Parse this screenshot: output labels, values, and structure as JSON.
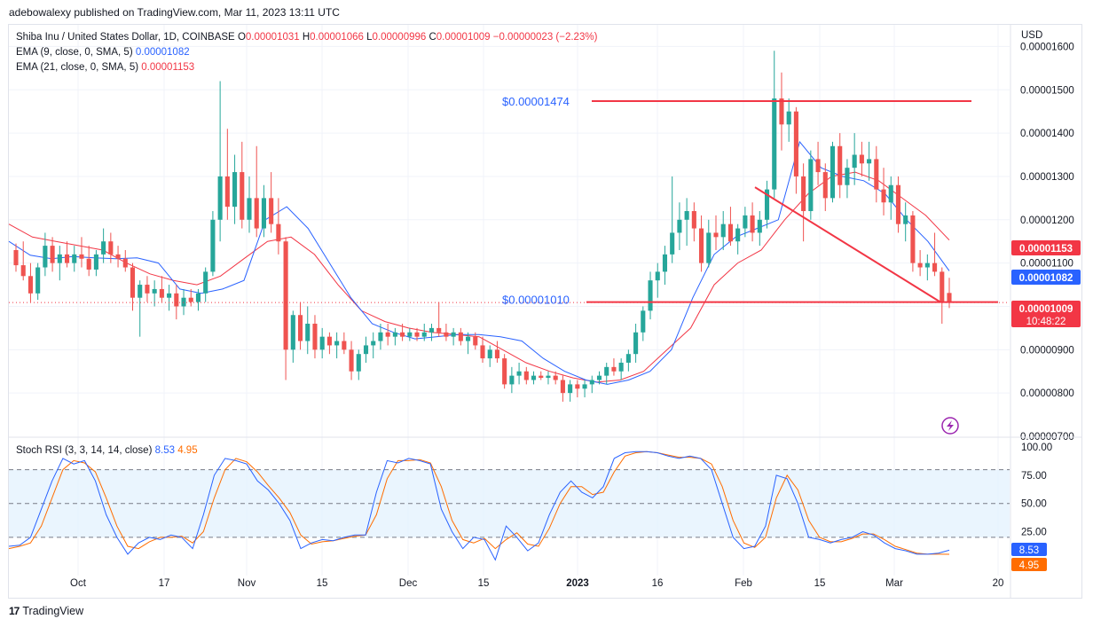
{
  "header": {
    "publisher": "adebowalexy published on TradingView.com, Mar 11, 2023 13:11 UTC"
  },
  "legend": {
    "symbol": "Shiba Inu / United States Dollar, 1D, COINBASE",
    "ohlc": [
      {
        "k": "O",
        "v": "0.00001031"
      },
      {
        "k": "H",
        "v": "0.00001066"
      },
      {
        "k": "L",
        "v": "0.00000996"
      },
      {
        "k": "C",
        "v": "0.00001009"
      }
    ],
    "change": "−0.00000023 (−2.23%)",
    "ema9_label": "EMA (9, close, 0, SMA, 5)",
    "ema9_value": "0.00001082",
    "ema21_label": "EMA (21, close, 0, SMA, 5)",
    "ema21_value": "0.00001153"
  },
  "rsi_legend": {
    "label": "Stoch RSI (3, 3, 14, 14, close)",
    "k": "8.53",
    "d": "4.95"
  },
  "currency": "USD",
  "footer": {
    "brand": "TradingView",
    "logo": "17"
  },
  "colors": {
    "up": "#26a69a",
    "down": "#ef5350",
    "ema9": "#2962ff",
    "ema21": "#f23645",
    "stoch_k": "#2962ff",
    "stoch_d": "#ff6d00",
    "band": "#e3f2fd"
  },
  "chart_data": [
    {
      "type": "candlestick",
      "title": "Shiba Inu / United States Dollar, 1D, COINBASE",
      "price_axis": [
        "0.00001600",
        "0.00001500",
        "0.00001400",
        "0.00001300",
        "0.00001200",
        "0.00001100",
        "0.00001000",
        "0.00000900",
        "0.00000800",
        "0.00000700"
      ],
      "time_axis": [
        "Oct",
        "17",
        "Nov",
        "15",
        "Dec",
        "15",
        "2023",
        "16",
        "Feb",
        "15",
        "Mar",
        "20"
      ],
      "ylim": [
        7e-06,
        1.65e-05
      ],
      "price_labels": [
        {
          "text": "0.00001153",
          "color": "#f23645"
        },
        {
          "text": "0.00001082",
          "color": "#2962ff"
        },
        {
          "text": "0.00001009",
          "sub": "10:48:22",
          "color": "#f23645"
        }
      ],
      "annotations": [
        {
          "text": "$0.00001474",
          "level": 1.474e-05
        },
        {
          "text": "$0.00001010",
          "level": 1.01e-05
        }
      ],
      "trendline": {
        "from": [
          1.275e-05,
          "Feb 5"
        ],
        "to": [
          1.01e-05,
          "Mar 9"
        ]
      },
      "ohlc_path": [
        [
          1.13e-05,
          1.145e-05,
          1.08e-05,
          1.095e-05
        ],
        [
          1.095e-05,
          1.15e-05,
          1.06e-05,
          1.07e-05
        ],
        [
          1.07e-05,
          1.1e-05,
          1.01e-05,
          1.03e-05
        ],
        [
          1.03e-05,
          1.1e-05,
          1.015e-05,
          1.09e-05
        ],
        [
          1.09e-05,
          1.17e-05,
          1.07e-05,
          1.14e-05
        ],
        [
          1.14e-05,
          1.16e-05,
          1.08e-05,
          1.1e-05
        ],
        [
          1.1e-05,
          1.14e-05,
          1.06e-05,
          1.12e-05
        ],
        [
          1.12e-05,
          1.15e-05,
          1.09e-05,
          1.1e-05
        ],
        [
          1.1e-05,
          1.14e-05,
          1.08e-05,
          1.12e-05
        ],
        [
          1.12e-05,
          1.16e-05,
          1.09e-05,
          1.11e-05
        ],
        [
          1.11e-05,
          1.14e-05,
          1.07e-05,
          1.085e-05
        ],
        [
          1.085e-05,
          1.13e-05,
          1.07e-05,
          1.12e-05
        ],
        [
          1.12e-05,
          1.18e-05,
          1.1e-05,
          1.15e-05
        ],
        [
          1.15e-05,
          1.17e-05,
          1.1e-05,
          1.12e-05
        ],
        [
          1.12e-05,
          1.14e-05,
          1.09e-05,
          1.11e-05
        ],
        [
          1.11e-05,
          1.13e-05,
          1.08e-05,
          1.09e-05
        ],
        [
          1.09e-05,
          1.1e-05,
          9.9e-06,
          1.02e-05
        ],
        [
          1.02e-05,
          1.06e-05,
          9.3e-06,
          1.05e-05
        ],
        [
          1.05e-05,
          1.07e-05,
          1.01e-05,
          1.03e-05
        ],
        [
          1.03e-05,
          1.06e-05,
          1e-05,
          1.04e-05
        ],
        [
          1.04e-05,
          1.07e-05,
          1.01e-05,
          1.02e-05
        ],
        [
          1.02e-05,
          1.05e-05,
          9.9e-06,
          1.03e-05
        ],
        [
          1.03e-05,
          1.05e-05,
          9.7e-06,
          1e-05
        ],
        [
          1e-05,
          1.04e-05,
          9.8e-06,
          1.02e-05
        ],
        [
          1.02e-05,
          1.04e-05,
          1e-05,
          1.01e-05
        ],
        [
          1.01e-05,
          1.04e-05,
          9.9e-06,
          1.03e-05
        ],
        [
          1.03e-05,
          1.09e-05,
          1.01e-05,
          1.08e-05
        ],
        [
          1.08e-05,
          1.22e-05,
          1.07e-05,
          1.2e-05
        ],
        [
          1.2e-05,
          1.52e-05,
          1.15e-05,
          1.3e-05
        ],
        [
          1.3e-05,
          1.41e-05,
          1.2e-05,
          1.23e-05
        ],
        [
          1.23e-05,
          1.35e-05,
          1.19e-05,
          1.31e-05
        ],
        [
          1.31e-05,
          1.38e-05,
          1.18e-05,
          1.2e-05
        ],
        [
          1.2e-05,
          1.3e-05,
          1.17e-05,
          1.25e-05
        ],
        [
          1.25e-05,
          1.37e-05,
          1.16e-05,
          1.18e-05
        ],
        [
          1.18e-05,
          1.28e-05,
          1.16e-05,
          1.25e-05
        ],
        [
          1.25e-05,
          1.31e-05,
          1.17e-05,
          1.19e-05
        ],
        [
          1.19e-05,
          1.25e-05,
          1.12e-05,
          1.15e-05
        ],
        [
          1.15e-05,
          1.16e-05,
          8.3e-06,
          9e-06
        ],
        [
          9e-06,
          9.9e-06,
          8.7e-06,
          9.8e-06
        ],
        [
          9.8e-06,
          1.01e-05,
          9e-06,
          9.2e-06
        ],
        [
          9.2e-06,
          1e-05,
          8.9e-06,
          9.6e-06
        ],
        [
          9.6e-06,
          9.8e-06,
          8.8e-06,
          9e-06
        ],
        [
          9e-06,
          9.5e-06,
          8.8e-06,
          9.3e-06
        ],
        [
          9.3e-06,
          9.4e-06,
          8.9e-06,
          9.1e-06
        ],
        [
          9.1e-06,
          9.4e-06,
          8.8e-06,
          9.2e-06
        ],
        [
          9.2e-06,
          9.4e-06,
          8.9e-06,
          9e-06
        ],
        [
          9e-06,
          9.2e-06,
          8.3e-06,
          8.5e-06
        ],
        [
          8.5e-06,
          9e-06,
          8.3e-06,
          8.9e-06
        ],
        [
          8.9e-06,
          9.3e-06,
          8.7e-06,
          9.1e-06
        ],
        [
          9.1e-06,
          9.4e-06,
          8.8e-06,
          9.2e-06
        ],
        [
          9.2e-06,
          9.6e-06,
          9e-06,
          9.4e-06
        ],
        [
          9.4e-06,
          9.6e-06,
          9.1e-06,
          9.3e-06
        ],
        [
          9.3e-06,
          9.5e-06,
          9.1e-06,
          9.4e-06
        ],
        [
          9.4e-06,
          9.6e-06,
          9.2e-06,
          9.3e-06
        ],
        [
          9.3e-06,
          9.5e-06,
          9.2e-06,
          9.4e-06
        ],
        [
          9.4e-06,
          9.5e-06,
          9.2e-06,
          9.3e-06
        ],
        [
          9.3e-06,
          9.6e-06,
          9.2e-06,
          9.4e-06
        ],
        [
          9.4e-06,
          9.6e-06,
          9.2e-06,
          9.5e-06
        ],
        [
          9.5e-06,
          1.01e-05,
          9.3e-06,
          9.4e-06
        ],
        [
          9.4e-06,
          9.6e-06,
          9.2e-06,
          9.3e-06
        ],
        [
          9.3e-06,
          9.5e-06,
          9.1e-06,
          9.4e-06
        ],
        [
          9.4e-06,
          9.5e-06,
          9.1e-06,
          9.2e-06
        ],
        [
          9.2e-06,
          9.4e-06,
          8.9e-06,
          9.3e-06
        ],
        [
          9.3e-06,
          9.4e-06,
          9e-06,
          9.1e-06
        ],
        [
          9.1e-06,
          9.3e-06,
          8.7e-06,
          8.8e-06
        ],
        [
          8.8e-06,
          9.1e-06,
          8.6e-06,
          9e-06
        ],
        [
          9e-06,
          9.2e-06,
          8.7e-06,
          8.8e-06
        ],
        [
          8.8e-06,
          8.9e-06,
          8.1e-06,
          8.2e-06
        ],
        [
          8.2e-06,
          8.6e-06,
          8e-06,
          8.4e-06
        ],
        [
          8.4e-06,
          8.7e-06,
          8.2e-06,
          8.5e-06
        ],
        [
          8.5e-06,
          8.6e-06,
          8.2e-06,
          8.3e-06
        ],
        [
          8.3e-06,
          8.5e-06,
          8.2e-06,
          8.4e-06
        ],
        [
          8.4e-06,
          8.5e-06,
          8.3e-06,
          8.35e-06
        ],
        [
          8.35e-06,
          8.5e-06,
          8.2e-06,
          8.4e-06
        ],
        [
          8.4e-06,
          8.5e-06,
          8.2e-06,
          8.3e-06
        ],
        [
          8.3e-06,
          8.4e-06,
          7.8e-06,
          8e-06
        ],
        [
          8e-06,
          8.3e-06,
          7.8e-06,
          8.2e-06
        ],
        [
          8.2e-06,
          8.3e-06,
          7.9e-06,
          8.1e-06
        ],
        [
          8.1e-06,
          8.3e-06,
          7.9e-06,
          8.2e-06
        ],
        [
          8.2e-06,
          8.4e-06,
          8e-06,
          8.3e-06
        ],
        [
          8.3e-06,
          8.5e-06,
          8.2e-06,
          8.4e-06
        ],
        [
          8.4e-06,
          8.7e-06,
          8.2e-06,
          8.6e-06
        ],
        [
          8.6e-06,
          8.8e-06,
          8.4e-06,
          8.5e-06
        ],
        [
          8.5e-06,
          8.8e-06,
          8.3e-06,
          8.7e-06
        ],
        [
          8.7e-06,
          9e-06,
          8.5e-06,
          8.9e-06
        ],
        [
          8.9e-06,
          9.6e-06,
          8.7e-06,
          9.4e-06
        ],
        [
          9.4e-06,
          1e-05,
          9.2e-06,
          9.9e-06
        ],
        [
          9.9e-06,
          1.08e-05,
          9.7e-06,
          1.06e-05
        ],
        [
          1.06e-05,
          1.1e-05,
          1.02e-05,
          1.08e-05
        ],
        [
          1.08e-05,
          1.14e-05,
          1.05e-05,
          1.12e-05
        ],
        [
          1.12e-05,
          1.3e-05,
          1.1e-05,
          1.17e-05
        ],
        [
          1.17e-05,
          1.24e-05,
          1.13e-05,
          1.2e-05
        ],
        [
          1.2e-05,
          1.25e-05,
          1.14e-05,
          1.22e-05
        ],
        [
          1.22e-05,
          1.24e-05,
          1.15e-05,
          1.18e-05
        ],
        [
          1.18e-05,
          1.21e-05,
          1.08e-05,
          1.1e-05
        ],
        [
          1.1e-05,
          1.2e-05,
          1.09e-05,
          1.17e-05
        ],
        [
          1.17e-05,
          1.21e-05,
          1.13e-05,
          1.16e-05
        ],
        [
          1.16e-05,
          1.22e-05,
          1.13e-05,
          1.19e-05
        ],
        [
          1.19e-05,
          1.23e-05,
          1.14e-05,
          1.15e-05
        ],
        [
          1.15e-05,
          1.19e-05,
          1.12e-05,
          1.18e-05
        ],
        [
          1.18e-05,
          1.23e-05,
          1.16e-05,
          1.21e-05
        ],
        [
          1.21e-05,
          1.24e-05,
          1.15e-05,
          1.17e-05
        ],
        [
          1.17e-05,
          1.22e-05,
          1.14e-05,
          1.2e-05
        ],
        [
          1.2e-05,
          1.29e-05,
          1.18e-05,
          1.27e-05
        ],
        [
          1.27e-05,
          1.59e-05,
          1.25e-05,
          1.48e-05
        ],
        [
          1.48e-05,
          1.54e-05,
          1.36e-05,
          1.42e-05
        ],
        [
          1.42e-05,
          1.48e-05,
          1.38e-05,
          1.45e-05
        ],
        [
          1.45e-05,
          1.46e-05,
          1.26e-05,
          1.3e-05
        ],
        [
          1.3e-05,
          1.33e-05,
          1.15e-05,
          1.22e-05
        ],
        [
          1.22e-05,
          1.36e-05,
          1.2e-05,
          1.34e-05
        ],
        [
          1.34e-05,
          1.38e-05,
          1.28e-05,
          1.31e-05
        ],
        [
          1.31e-05,
          1.33e-05,
          1.22e-05,
          1.25e-05
        ],
        [
          1.25e-05,
          1.38e-05,
          1.24e-05,
          1.37e-05
        ],
        [
          1.37e-05,
          1.4e-05,
          1.25e-05,
          1.28e-05
        ],
        [
          1.28e-05,
          1.34e-05,
          1.25e-05,
          1.32e-05
        ],
        [
          1.32e-05,
          1.4e-05,
          1.28e-05,
          1.35e-05
        ],
        [
          1.35e-05,
          1.38e-05,
          1.3e-05,
          1.33e-05
        ],
        [
          1.33e-05,
          1.38e-05,
          1.29e-05,
          1.34e-05
        ],
        [
          1.34e-05,
          1.37e-05,
          1.24e-05,
          1.27e-05
        ],
        [
          1.27e-05,
          1.32e-05,
          1.21e-05,
          1.24e-05
        ],
        [
          1.24e-05,
          1.3e-05,
          1.2e-05,
          1.28e-05
        ],
        [
          1.28e-05,
          1.3e-05,
          1.17e-05,
          1.19e-05
        ],
        [
          1.19e-05,
          1.24e-05,
          1.15e-05,
          1.21e-05
        ],
        [
          1.21e-05,
          1.22e-05,
          1.08e-05,
          1.1e-05
        ],
        [
          1.1e-05,
          1.13e-05,
          1.07e-05,
          1.09e-05
        ],
        [
          1.09e-05,
          1.12e-05,
          1.06e-05,
          1.1e-05
        ],
        [
          1.1e-05,
          1.17e-05,
          1.07e-05,
          1.08e-05
        ],
        [
          1.08e-05,
          1.09e-05,
          9.6e-06,
          1.01e-05
        ],
        [
          1.031e-05,
          1.066e-05,
          9.96e-06,
          1.009e-05
        ]
      ],
      "ema9": [
        1.15e-05,
        1.118e-05,
        1.11e-05,
        1.115e-05,
        1.112e-05,
        1.11e-05,
        1.112e-05,
        1.1e-05,
        1.04e-05,
        1.03e-05,
        1.04e-05,
        1.06e-05,
        1.2e-05,
        1.23e-05,
        1.18e-05,
        1.1e-05,
        1.02e-05,
        9.6e-06,
        9.4e-06,
        9.25e-06,
        9.3e-06,
        9.35e-06,
        9.35e-06,
        9.3e-06,
        9.2e-06,
        8.8e-06,
        8.5e-06,
        8.3e-06,
        8.2e-06,
        8.3e-06,
        8.5e-06,
        9e-06,
        1.02e-05,
        1.12e-05,
        1.16e-05,
        1.18e-05,
        1.2e-05,
        1.38e-05,
        1.32e-05,
        1.3e-05,
        1.29e-05,
        1.26e-05,
        1.2e-05,
        1.15e-05,
        1.082e-05
      ],
      "ema21": [
        1.19e-05,
        1.16e-05,
        1.15e-05,
        1.14e-05,
        1.13e-05,
        1.1e-05,
        1.075e-05,
        1.06e-05,
        1.05e-05,
        1.07e-05,
        1.11e-05,
        1.15e-05,
        1.16e-05,
        1.12e-05,
        1.05e-05,
        9.9e-06,
        9.65e-06,
        9.5e-06,
        9.4e-06,
        9.35e-06,
        9.3e-06,
        9e-06,
        8.7e-06,
        8.5e-06,
        8.35e-06,
        8.25e-06,
        8.3e-06,
        8.5e-06,
        9e-06,
        9.5e-06,
        1.05e-05,
        1.1e-05,
        1.13e-05,
        1.2e-05,
        1.26e-05,
        1.3e-05,
        1.31e-05,
        1.29e-05,
        1.25e-05,
        1.21e-05,
        1.153e-05
      ]
    },
    {
      "type": "line",
      "title": "Stoch RSI (3, 3, 14, 14, close)",
      "ylabels": [
        "100.00",
        "75.00",
        "50.00",
        "25.00"
      ],
      "band": [
        20,
        80
      ],
      "ylim": [
        -10,
        108
      ],
      "series": [
        {
          "name": "K",
          "value_label": "8.53",
          "values": [
            12,
            13,
            20,
            45,
            70,
            90,
            85,
            88,
            70,
            40,
            20,
            5,
            15,
            20,
            18,
            22,
            20,
            10,
            40,
            75,
            90,
            88,
            85,
            70,
            62,
            50,
            35,
            10,
            15,
            18,
            17,
            20,
            22,
            22,
            60,
            88,
            86,
            90,
            88,
            85,
            45,
            25,
            10,
            20,
            18,
            0,
            30,
            20,
            8,
            15,
            40,
            60,
            70,
            60,
            55,
            65,
            90,
            95,
            96,
            96,
            95,
            92,
            90,
            92,
            90,
            80,
            50,
            20,
            10,
            12,
            30,
            75,
            72,
            50,
            20,
            18,
            15,
            18,
            20,
            25,
            22,
            15,
            10,
            8,
            5,
            5,
            6,
            8.53
          ]
        },
        {
          "name": "D",
          "value_label": "4.95",
          "values": [
            10,
            12,
            15,
            30,
            55,
            80,
            88,
            86,
            78,
            55,
            30,
            12,
            10,
            16,
            20,
            20,
            21,
            15,
            25,
            55,
            80,
            90,
            87,
            78,
            66,
            55,
            42,
            22,
            14,
            16,
            17,
            19,
            21,
            22,
            40,
            72,
            88,
            88,
            89,
            86,
            65,
            35,
            18,
            15,
            19,
            10,
            18,
            24,
            14,
            12,
            28,
            50,
            65,
            65,
            58,
            60,
            78,
            92,
            95,
            96,
            95,
            93,
            91,
            91,
            90,
            85,
            65,
            35,
            15,
            11,
            20,
            55,
            75,
            62,
            35,
            20,
            16,
            16,
            19,
            23,
            23,
            18,
            12,
            9,
            6,
            5,
            5,
            4.95
          ]
        }
      ]
    }
  ]
}
